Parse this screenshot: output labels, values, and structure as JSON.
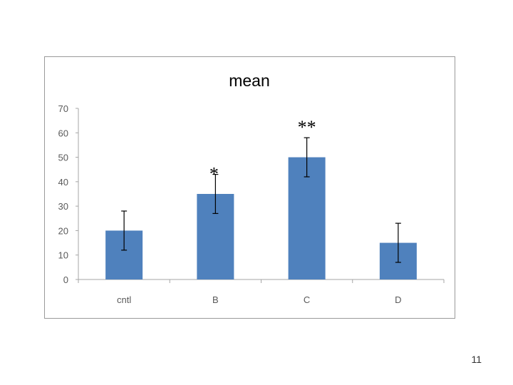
{
  "chart_data": {
    "type": "bar",
    "title": "mean",
    "xlabel": "",
    "ylabel": "",
    "categories": [
      "cntl",
      "B",
      "C",
      "D"
    ],
    "values": [
      20,
      35,
      50,
      15
    ],
    "error": [
      8,
      8,
      8,
      8
    ],
    "annotations": [
      "",
      "*",
      "**",
      ""
    ],
    "ylim": [
      0,
      70
    ],
    "yticks": [
      0,
      10,
      20,
      30,
      40,
      50,
      60,
      70
    ],
    "grid": false,
    "legend": "none",
    "bar_color": "#4f81bd"
  },
  "slide": {
    "page_number": "11"
  }
}
